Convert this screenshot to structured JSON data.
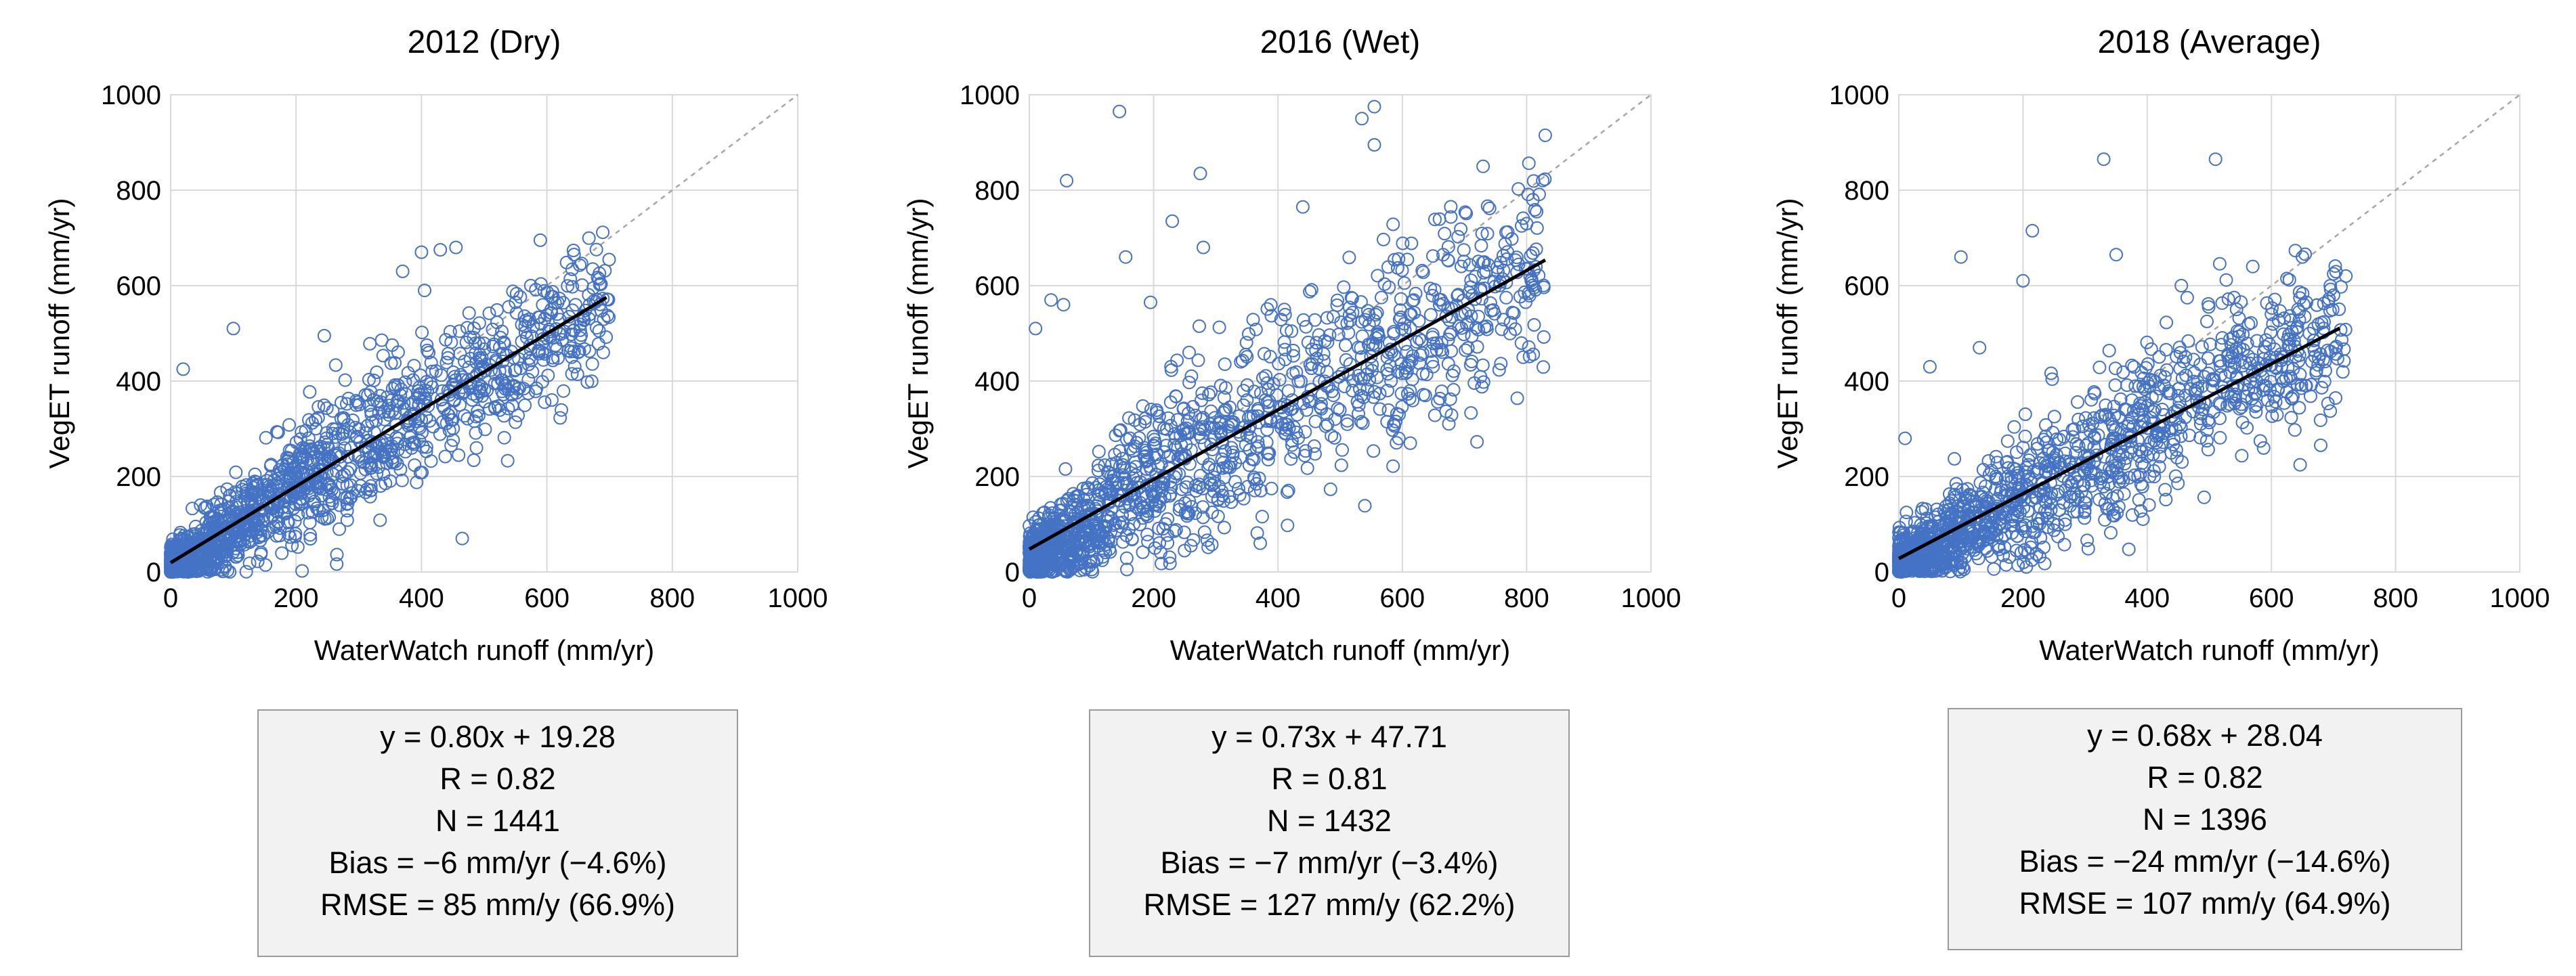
{
  "chart_data": [
    {
      "type": "scatter",
      "title": "2012 (Dry)",
      "xlabel": "WaterWatch runoff (mm/yr)",
      "ylabel": "VegET runoff (mm/yr)",
      "xlim": [
        0,
        1000
      ],
      "ylim": [
        0,
        1000
      ],
      "xticks": [
        "0",
        "200",
        "400",
        "600",
        "800",
        "1000"
      ],
      "yticks": [
        "0",
        "200",
        "400",
        "600",
        "800",
        "1000"
      ],
      "grid": true,
      "one_to_one_line": true,
      "fit": {
        "slope": 0.8,
        "intercept": 19.28,
        "x_range": [
          0,
          695
        ]
      },
      "cloud": {
        "n_points": 1441,
        "seed": 12,
        "slope": 0.8,
        "intercept": 19.28,
        "x_max": 700,
        "scatter_sd": 60,
        "intercept_min": 0
      },
      "outliers": [
        [
          245,
          495
        ],
        [
          455,
          680
        ],
        [
          430,
          675
        ],
        [
          400,
          670
        ],
        [
          370,
          630
        ],
        [
          405,
          590
        ],
        [
          465,
          70
        ],
        [
          650,
          460
        ],
        [
          690,
          460
        ],
        [
          600,
          490
        ],
        [
          550,
          565
        ],
        [
          100,
          510
        ],
        [
          20,
          425
        ],
        [
          640,
          415
        ]
      ],
      "stats": [
        "y = 0.80x + 19.28",
        "R = 0.82",
        "N = 1441",
        "Bias = −6 mm/yr  (−4.6%)",
        "RMSE = 85 mm/y  (66.9%)"
      ]
    },
    {
      "type": "scatter",
      "title": "2016 (Wet)",
      "xlabel": "WaterWatch runoff (mm/yr)",
      "ylabel": "VegET runoff (mm/yr)",
      "xlim": [
        0,
        1000
      ],
      "ylim": [
        0,
        1000
      ],
      "xticks": [
        "0",
        "200",
        "400",
        "600",
        "800",
        "1000"
      ],
      "yticks": [
        "0",
        "200",
        "400",
        "600",
        "800",
        "1000"
      ],
      "grid": true,
      "one_to_one_line": true,
      "fit": {
        "slope": 0.73,
        "intercept": 47.71,
        "x_range": [
          0,
          830
        ]
      },
      "cloud": {
        "n_points": 1432,
        "seed": 16,
        "slope": 0.73,
        "intercept": 47.71,
        "x_max": 830,
        "scatter_sd": 90,
        "intercept_min": 0
      },
      "outliers": [
        [
          145,
          965
        ],
        [
          555,
          975
        ],
        [
          535,
          950
        ],
        [
          60,
          820
        ],
        [
          275,
          835
        ],
        [
          555,
          895
        ],
        [
          230,
          735
        ],
        [
          440,
          765
        ],
        [
          730,
          850
        ],
        [
          830,
          915
        ],
        [
          155,
          660
        ],
        [
          55,
          560
        ],
        [
          10,
          510
        ],
        [
          35,
          570
        ],
        [
          800,
          730
        ],
        [
          810,
          780
        ],
        [
          195,
          565
        ],
        [
          280,
          680
        ]
      ],
      "stats": [
        "y = 0.73x + 47.71",
        "R = 0.81",
        "N = 1432",
        "Bias = −7 mm/yr  (−3.4%)",
        "RMSE = 127 mm/y  (62.2%)"
      ]
    },
    {
      "type": "scatter",
      "title": "2018 (Average)",
      "xlabel": "WaterWatch runoff (mm/yr)",
      "ylabel": "VegET runoff (mm/yr)",
      "xlim": [
        0,
        1000
      ],
      "ylim": [
        0,
        1000
      ],
      "xticks": [
        "0",
        "200",
        "400",
        "600",
        "800",
        "1000"
      ],
      "yticks": [
        "0",
        "200",
        "400",
        "600",
        "800",
        "1000"
      ],
      "grid": true,
      "one_to_one_line": true,
      "fit": {
        "slope": 0.68,
        "intercept": 28.04,
        "x_range": [
          0,
          710
        ]
      },
      "cloud": {
        "n_points": 1396,
        "seed": 18,
        "slope": 0.68,
        "intercept": 28.04,
        "x_max": 720,
        "scatter_sd": 70,
        "intercept_min": 0
      },
      "outliers": [
        [
          330,
          865
        ],
        [
          510,
          865
        ],
        [
          100,
          660
        ],
        [
          215,
          715
        ],
        [
          350,
          665
        ],
        [
          200,
          610
        ],
        [
          570,
          640
        ],
        [
          650,
          660
        ],
        [
          720,
          620
        ],
        [
          700,
          580
        ],
        [
          130,
          470
        ],
        [
          50,
          430
        ],
        [
          10,
          280
        ],
        [
          455,
          600
        ],
        [
          540,
          575
        ],
        [
          600,
          540
        ]
      ],
      "stats": [
        "y = 0.68x + 28.04",
        "R = 0.82",
        "N = 1396",
        "Bias = −24 mm/yr  (−14.6%)",
        "RMSE = 107 mm/y  (64.9%)"
      ]
    }
  ]
}
